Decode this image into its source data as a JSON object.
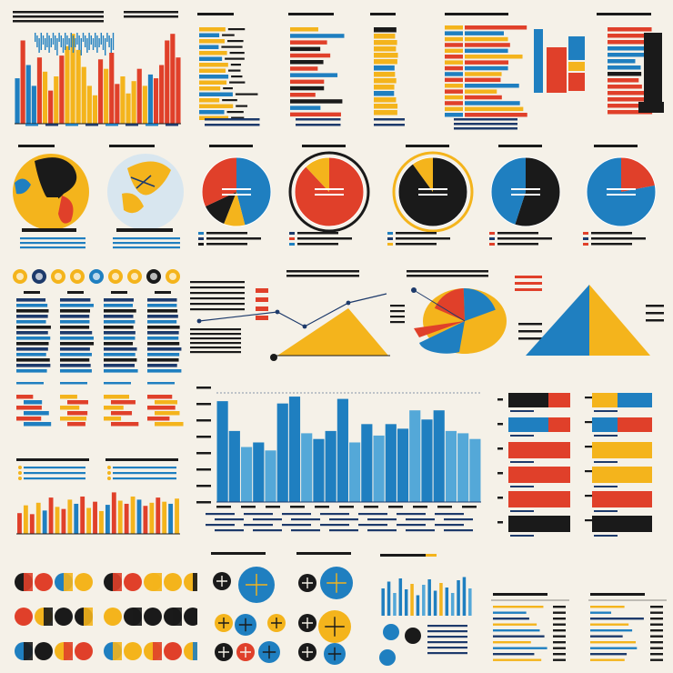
{
  "palette": {
    "blue": "#1f7fc0",
    "light_blue": "#54a8d8",
    "yellow": "#f4b41c",
    "red": "#e0402a",
    "black": "#1a1a1a",
    "navy": "#1d3a6b",
    "paper": "#f5f1e8"
  },
  "chart_data": [
    {
      "id": "top-left-bar",
      "type": "bar",
      "values": [
        48,
        88,
        62,
        40,
        70,
        55,
        35,
        50,
        72,
        82,
        95,
        78,
        60,
        40,
        30,
        68,
        58,
        75,
        42,
        50,
        32,
        45,
        58,
        40,
        52,
        48,
        62,
        88,
        95,
        70
      ],
      "colors": [
        "blue",
        "red",
        "blue",
        "blue",
        "red",
        "yellow",
        "red",
        "yellow",
        "red",
        "yellow",
        "yellow",
        "yellow",
        "yellow",
        "yellow",
        "yellow",
        "red",
        "yellow",
        "red",
        "red",
        "yellow",
        "yellow",
        "yellow",
        "red",
        "yellow",
        "blue",
        "red",
        "red",
        "red",
        "red",
        "red"
      ],
      "ylim": [
        0,
        100
      ]
    },
    {
      "id": "main-bar",
      "type": "bar",
      "values": [
        88,
        62,
        48,
        52,
        45,
        86,
        92,
        60,
        55,
        62,
        90,
        52,
        68,
        58,
        68,
        64,
        80,
        72,
        80,
        62,
        60,
        55
      ],
      "colors": [
        "blue",
        "blue",
        "light_blue",
        "blue",
        "light_blue",
        "blue",
        "blue",
        "light_blue",
        "blue",
        "blue",
        "blue",
        "light_blue",
        "blue",
        "light_blue",
        "blue",
        "blue",
        "light_blue",
        "blue",
        "blue",
        "light_blue",
        "light_blue",
        "light_blue"
      ],
      "ylim": [
        0,
        100
      ]
    },
    {
      "id": "pie-1",
      "type": "pie",
      "values": [
        46,
        10,
        12,
        32
      ],
      "colors": [
        "blue",
        "yellow",
        "black",
        "red"
      ]
    },
    {
      "id": "pie-2",
      "type": "pie",
      "values": [
        88,
        12
      ],
      "colors": [
        "red",
        "yellow"
      ]
    },
    {
      "id": "pie-3",
      "type": "pie",
      "values": [
        90,
        10
      ],
      "colors": [
        "black",
        "yellow"
      ]
    },
    {
      "id": "pie-4",
      "type": "pie",
      "values": [
        55,
        45
      ],
      "colors": [
        "black",
        "blue"
      ]
    },
    {
      "id": "pie-5",
      "type": "pie",
      "values": [
        22,
        78
      ],
      "colors": [
        "red",
        "blue"
      ]
    },
    {
      "id": "right-hbar-stack",
      "type": "bar",
      "orientation": "horizontal",
      "rows": [
        {
          "left": [
            "black",
            "red"
          ],
          "right": [
            "yellow",
            "blue"
          ]
        },
        {
          "left": [
            "blue",
            "red"
          ],
          "right": [
            "blue",
            "red"
          ]
        },
        {
          "left": [
            "red"
          ],
          "right": [
            "yellow"
          ]
        },
        {
          "left": [
            "red"
          ],
          "right": [
            "yellow"
          ]
        },
        {
          "left": [
            "red"
          ],
          "right": [
            "red"
          ]
        },
        {
          "left": [
            "black"
          ],
          "right": [
            "black"
          ]
        }
      ]
    },
    {
      "id": "bottom-left-bar",
      "type": "bar",
      "values": [
        40,
        55,
        38,
        60,
        45,
        70,
        52,
        48,
        66,
        58,
        72,
        50,
        62,
        44,
        56,
        80,
        64,
        58,
        72,
        66,
        54,
        60,
        70,
        62,
        58,
        68
      ],
      "colors": [
        "red",
        "yellow",
        "red",
        "yellow",
        "blue",
        "red",
        "yellow",
        "red",
        "yellow",
        "blue",
        "red",
        "yellow",
        "red",
        "yellow",
        "blue",
        "red",
        "yellow",
        "red",
        "yellow",
        "blue",
        "red",
        "yellow",
        "red",
        "yellow",
        "blue",
        "yellow"
      ],
      "ylim": [
        0,
        100
      ]
    },
    {
      "id": "bottom-blue-bar",
      "type": "bar",
      "values": [
        60,
        75,
        50,
        82,
        58,
        70,
        45,
        68,
        80,
        55,
        72,
        62,
        50,
        78,
        85,
        60
      ],
      "colors": [
        "blue",
        "blue",
        "light_blue",
        "blue",
        "blue",
        "yellow",
        "blue",
        "light_blue",
        "blue",
        "blue",
        "yellow",
        "blue",
        "light_blue",
        "blue",
        "blue",
        "light_blue"
      ],
      "ylim": [
        0,
        100
      ]
    },
    {
      "id": "triangle-mid",
      "type": "area",
      "colors": [
        "yellow"
      ]
    },
    {
      "id": "triangle-right",
      "type": "area",
      "colors": [
        "blue",
        "yellow"
      ]
    },
    {
      "id": "fan-pie",
      "type": "pie",
      "values": [
        62,
        18,
        20
      ],
      "colors": [
        "yellow",
        "red",
        "blue"
      ]
    }
  ],
  "labels": {
    "main_title": "",
    "bar_legend": ""
  }
}
